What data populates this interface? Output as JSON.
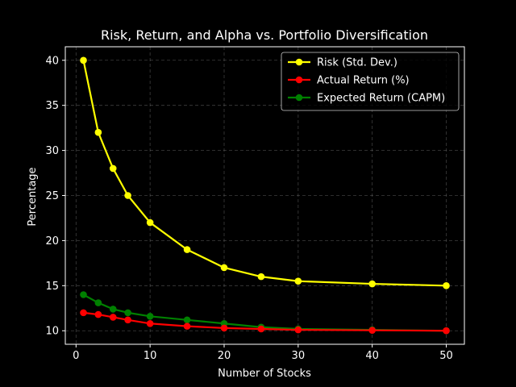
{
  "chart_data": {
    "type": "line",
    "title": "Risk, Return, and Alpha vs. Portfolio Diversification",
    "xlabel": "Number of Stocks",
    "ylabel": "Percentage",
    "xlim": [
      -1.45,
      52.45
    ],
    "ylim": [
      8.5,
      41.5
    ],
    "xticks": [
      0,
      10,
      20,
      30,
      40,
      50
    ],
    "yticks": [
      10,
      15,
      20,
      25,
      30,
      35,
      40
    ],
    "grid": true,
    "legend_position": "top-right",
    "background": "#000000",
    "x": [
      1,
      3,
      5,
      7,
      10,
      15,
      20,
      25,
      30,
      40,
      50
    ],
    "series": [
      {
        "name": "Risk (Std. Dev.)",
        "color": "#ffff00",
        "values": [
          40,
          32,
          28,
          25,
          22,
          19,
          17,
          16,
          15.5,
          15.2,
          15
        ]
      },
      {
        "name": "Actual Return (%)",
        "color": "#ff0000",
        "values": [
          12,
          11.8,
          11.5,
          11.2,
          10.8,
          10.5,
          10.3,
          10.2,
          10.1,
          10.05,
          10
        ]
      },
      {
        "name": "Expected Return (CAPM)",
        "color": "#008000",
        "values": [
          14,
          13.1,
          12.4,
          12,
          11.6,
          11.2,
          10.8,
          10.4,
          10.2,
          10.1,
          10
        ]
      }
    ]
  }
}
